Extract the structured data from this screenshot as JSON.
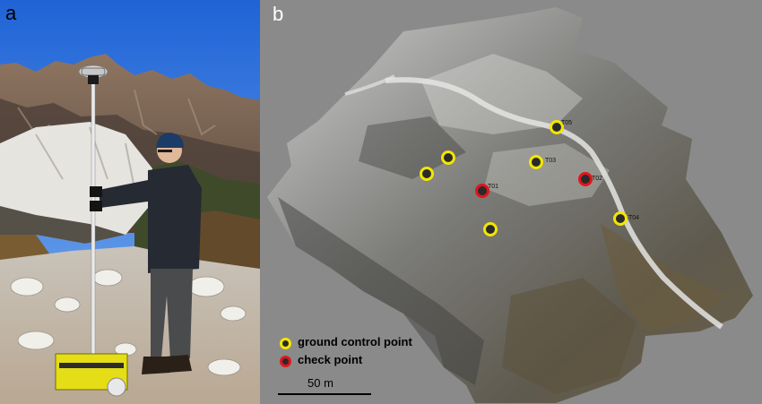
{
  "figure": {
    "panel_a_label": "a",
    "panel_b_label": "b"
  },
  "map": {
    "markers": [
      {
        "type": "ground-control-point",
        "label": ""
      },
      {
        "type": "ground-control-point",
        "label": ""
      },
      {
        "type": "ground-control-point",
        "label": "T03"
      },
      {
        "type": "ground-control-point",
        "label": "T05"
      },
      {
        "type": "ground-control-point",
        "label": "T04"
      },
      {
        "type": "ground-control-point",
        "label": ""
      },
      {
        "type": "check-point",
        "label": "T01"
      },
      {
        "type": "check-point",
        "label": "T02"
      }
    ],
    "legend": {
      "gcp_label": "ground control point",
      "check_label": "check point",
      "gcp_color": "#f2e600",
      "check_color": "#e3141b"
    },
    "scale_bar": {
      "label": "50 m"
    }
  }
}
